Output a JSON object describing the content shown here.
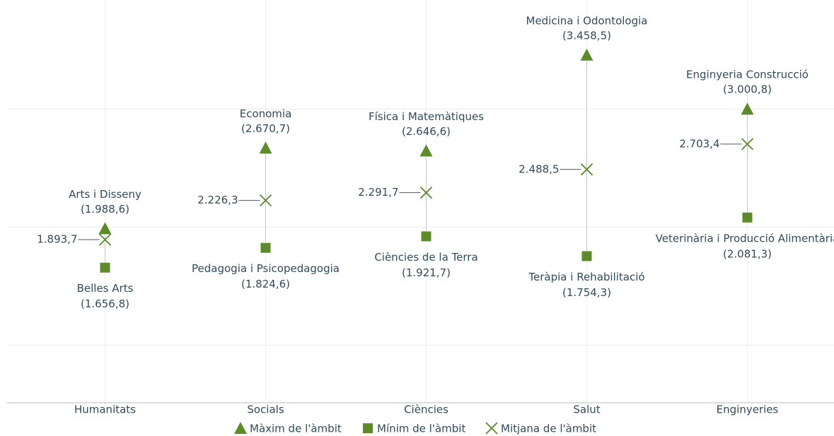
{
  "chart_data": {
    "type": "range",
    "categories": [
      "Humanitats",
      "Socials",
      "Ciències",
      "Salut",
      "Enginyeries"
    ],
    "ylim": [
      500,
      3900
    ],
    "yticks": [
      1000,
      2000,
      3000
    ],
    "grid": true,
    "legend": "bottom",
    "series": [
      {
        "name": "Màxim de l'àmbit",
        "color": "#5b8c27",
        "marker": "triangle",
        "labels": [
          "Arts i Disseny",
          "Economia",
          "Física i Matemàtiques",
          "Medicina i Odontologia",
          "Enginyeria Construcció"
        ],
        "values": [
          1988.6,
          2670.7,
          2646.6,
          3458.5,
          3000.8
        ],
        "value_labels": [
          "(1.988,6)",
          "(2.670,7)",
          "(2.646,6)",
          "(3.458,5)",
          "(3.000,8)"
        ]
      },
      {
        "name": "Mínim de l'àmbit",
        "color": "#5b8c27",
        "marker": "square",
        "labels": [
          "Belles Arts",
          "Pedagogia i Psicopedagogia",
          "Ciències de la Terra",
          "Teràpia i Rehabilitació",
          "Veterinària i Producció Alimentària"
        ],
        "values": [
          1656.8,
          1824.6,
          1921.7,
          1754.3,
          2081.3
        ],
        "value_labels": [
          "(1.656,8)",
          "(1.824,6)",
          "(1.921,7)",
          "(1.754,3)",
          "(2.081,3)"
        ]
      },
      {
        "name": "Mitjana de l'àmbit",
        "color": "#5b8c27",
        "marker": "cross",
        "values": [
          1893.7,
          2226.3,
          2291.7,
          2488.5,
          2703.4
        ],
        "value_labels": [
          "1.893,7",
          "2.226,3",
          "2.291,7",
          "2.488,5",
          "2.703,4"
        ]
      }
    ]
  }
}
